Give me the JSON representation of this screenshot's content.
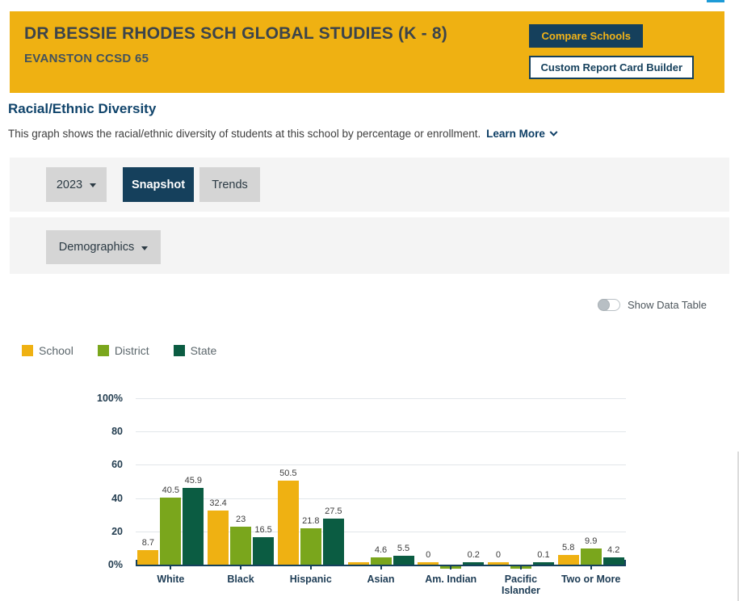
{
  "colors": {
    "header_bg": "#EFB112",
    "navy": "#15405C",
    "accent_blue": "#1E9BD7",
    "school_color": "#EFB112",
    "district_color": "#7AA61C",
    "state_color": "#0B5C42"
  },
  "header": {
    "school_name": "DR BESSIE RHODES SCH GLOBAL STUDIES (K - 8)",
    "district_name": "EVANSTON CCSD 65",
    "compare_button": "Compare Schools",
    "custom_report_button": "Custom Report Card Builder"
  },
  "section": {
    "title": "Racial/Ethnic Diversity",
    "description": "This graph shows the racial/ethnic diversity of students at this school by percentage or enrollment.",
    "learn_more": "Learn More"
  },
  "filters": {
    "year": "2023",
    "view_tabs": [
      {
        "label": "Snapshot",
        "active": true
      },
      {
        "label": "Trends",
        "active": false
      }
    ],
    "category_dropdown": "Demographics"
  },
  "controls": {
    "show_data_table": "Show Data Table",
    "toggle_on": false
  },
  "chart_data": {
    "type": "bar",
    "title": "Racial/Ethnic Diversity",
    "categories": [
      "White",
      "Black",
      "Hispanic",
      "Asian",
      "Am. Indian",
      "Pacific Islander",
      "Two or More"
    ],
    "series": [
      {
        "name": "School",
        "color": "#EFB112",
        "values": [
          8.7,
          32.4,
          50.5,
          0.5,
          0,
          0,
          5.8
        ],
        "labels": [
          "8.7",
          "32.4",
          "50.5",
          "",
          "0",
          "0",
          "5.8"
        ]
      },
      {
        "name": "District",
        "color": "#7AA61C",
        "values": [
          40.5,
          23,
          21.8,
          4.6,
          0.2,
          0.2,
          9.9
        ],
        "labels": [
          "40.5",
          "23",
          "21.8",
          "4.6",
          "",
          "",
          "9.9"
        ]
      },
      {
        "name": "State",
        "color": "#0B5C42",
        "values": [
          45.9,
          16.5,
          27.5,
          5.5,
          0.2,
          0.1,
          4.2
        ],
        "labels": [
          "45.9",
          "16.5",
          "27.5",
          "5.5",
          "0.2",
          "0.1",
          "4.2"
        ]
      }
    ],
    "y_ticks": [
      {
        "value": 0,
        "label": "0%"
      },
      {
        "value": 20,
        "label": "20"
      },
      {
        "value": 40,
        "label": "40"
      },
      {
        "value": 60,
        "label": "60"
      },
      {
        "value": 80,
        "label": "80"
      },
      {
        "value": 100,
        "label": "100%"
      }
    ],
    "ylim": [
      0,
      100
    ],
    "grid": true,
    "legend_position": "top-left"
  }
}
